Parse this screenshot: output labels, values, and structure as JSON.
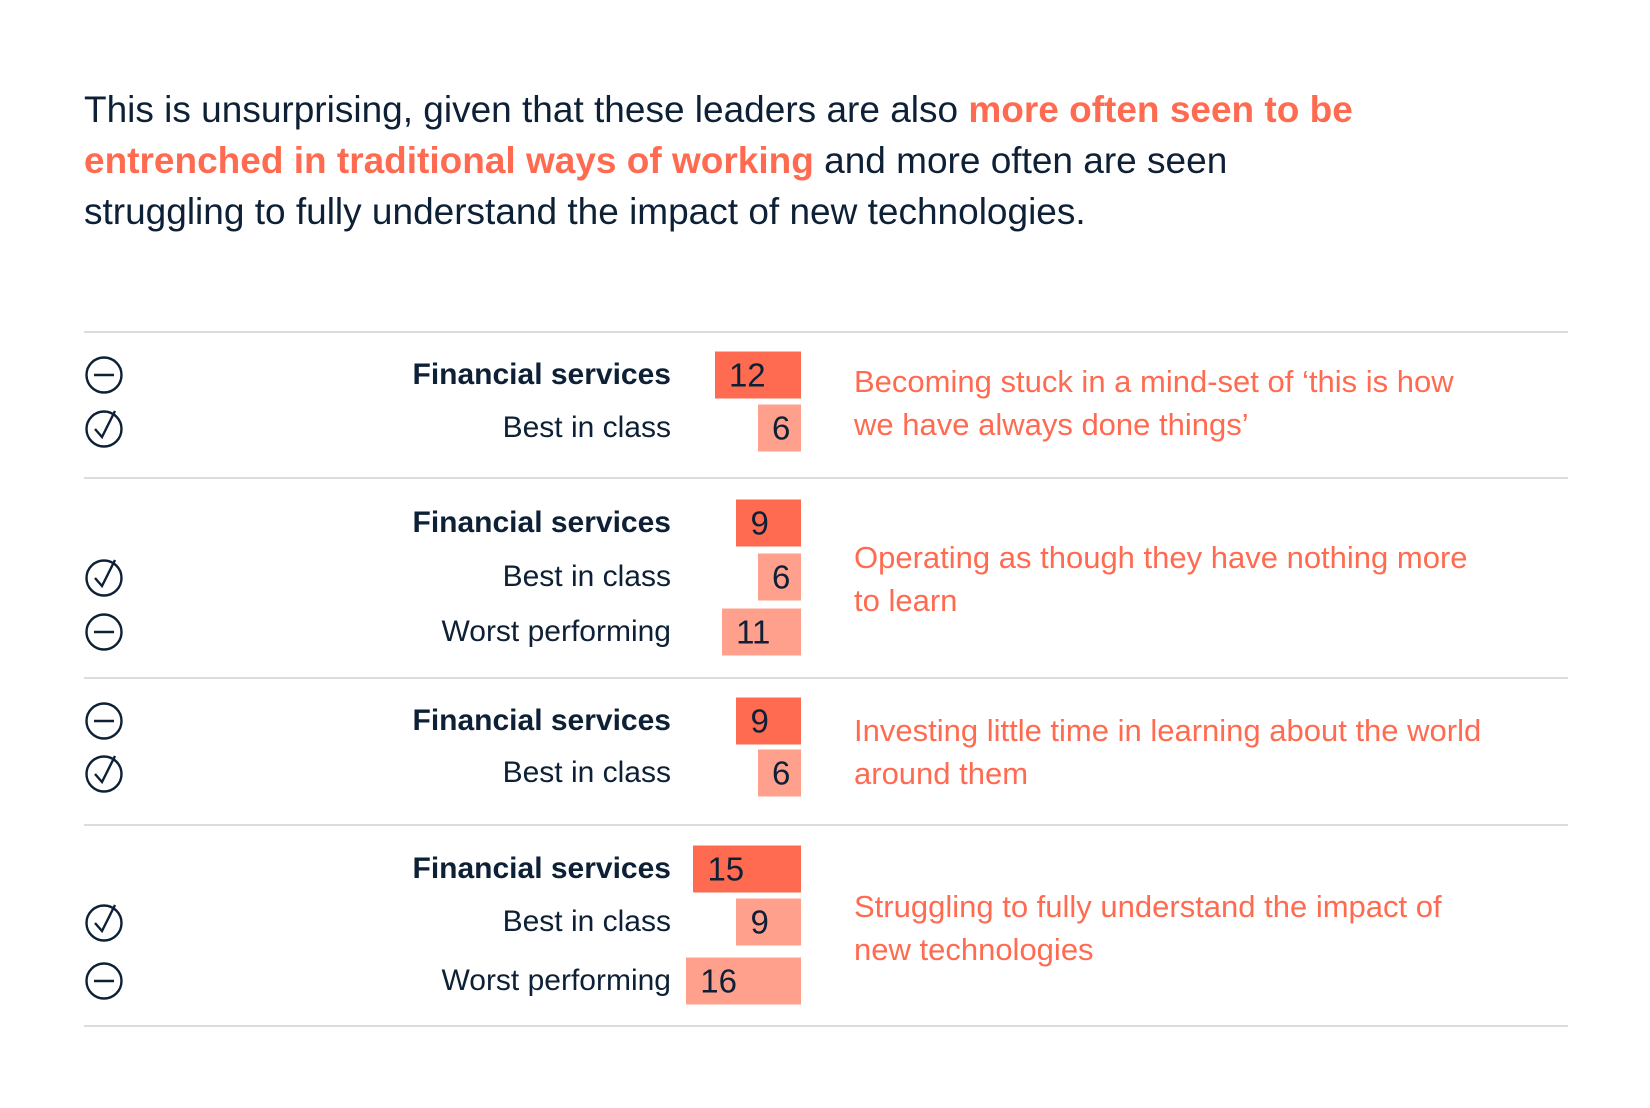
{
  "intro": {
    "part1": "This is unsurprising, given that these leaders are also ",
    "highlight": "more often seen to be entrenched in traditional ways of working",
    "part2": " and more often are seen struggling to fully understand the impact of new technologies."
  },
  "colors": {
    "financial_services": "#ff6b50",
    "comparison": "#ffa08c",
    "text": "#0d2036",
    "accent": "#ff6b50"
  },
  "chart_data": {
    "type": "bar",
    "orientation": "horizontal",
    "groups": [
      {
        "description": "Becoming stuck in a mind-set of ‘this is how we have always done things’",
        "rows": [
          {
            "label": "Financial services",
            "value": 12,
            "icon": "minus-circle-icon"
          },
          {
            "label": "Best in class",
            "value": 6,
            "icon": "check-circle-icon"
          }
        ]
      },
      {
        "description": "Operating as though they have nothing more to learn",
        "rows": [
          {
            "label": "Financial services",
            "value": 9,
            "icon": ""
          },
          {
            "label": "Best in class",
            "value": 6,
            "icon": "check-circle-icon"
          },
          {
            "label": "Worst performing",
            "value": 11,
            "icon": "minus-circle-icon"
          }
        ]
      },
      {
        "description": "Investing little time in learning about the world around them",
        "rows": [
          {
            "label": "Financial services",
            "value": 9,
            "icon": "minus-circle-icon"
          },
          {
            "label": "Best in class",
            "value": 6,
            "icon": "check-circle-icon"
          }
        ]
      },
      {
        "description": "Struggling to fully understand the impact of new technologies",
        "rows": [
          {
            "label": "Financial services",
            "value": 15,
            "icon": ""
          },
          {
            "label": "Best in class",
            "value": 9,
            "icon": "check-circle-icon"
          },
          {
            "label": "Worst performing",
            "value": 16,
            "icon": "minus-circle-icon"
          }
        ]
      }
    ]
  }
}
